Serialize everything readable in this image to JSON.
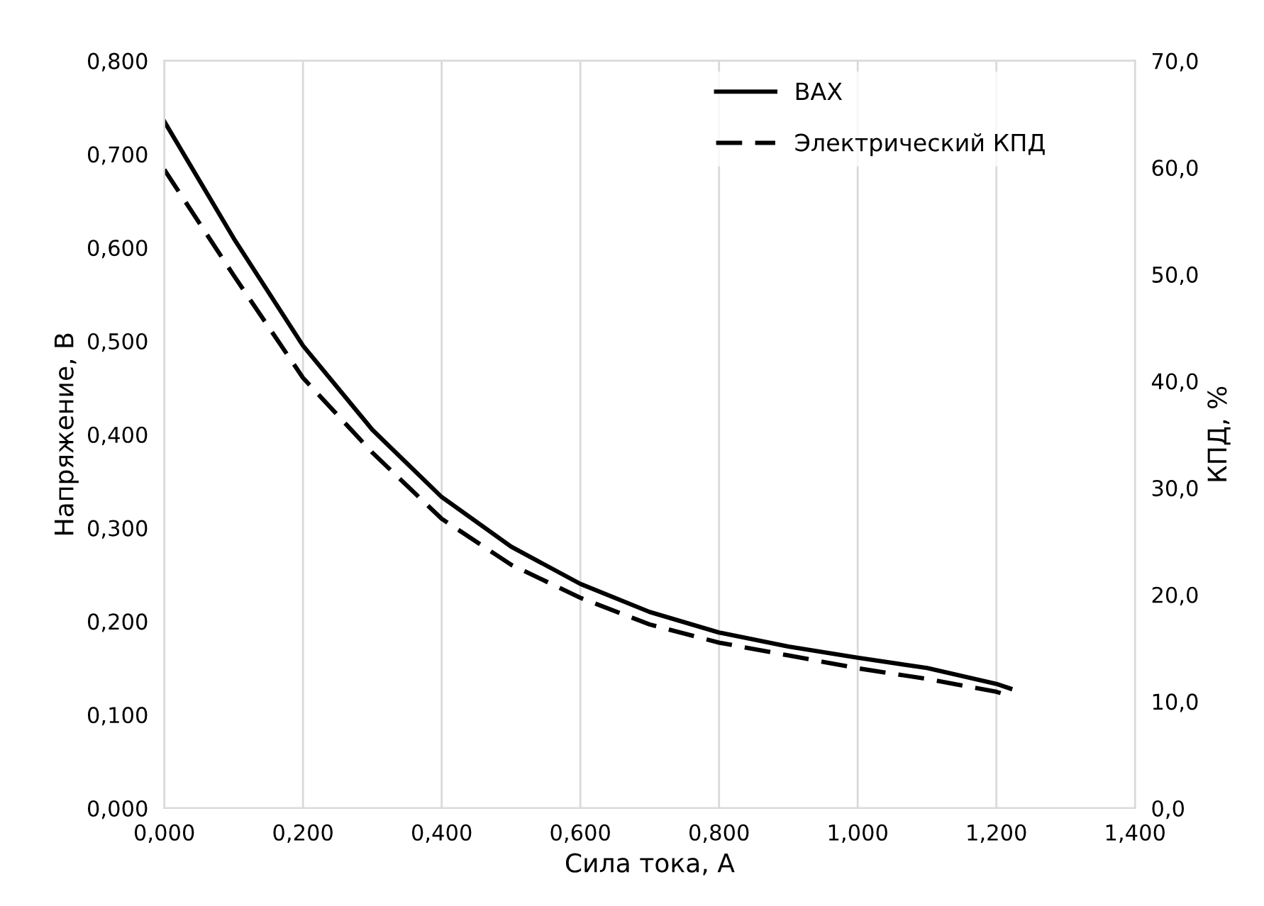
{
  "chart_data": {
    "type": "line",
    "xlabel": "Сила тока, А",
    "ylabel": "Напряжение, В",
    "y2label": "КПД, %",
    "xlim": [
      0,
      1.4
    ],
    "ylim": [
      0,
      0.8
    ],
    "y2lim": [
      0,
      70
    ],
    "xticks": [
      {
        "value": 0,
        "label": "0,000"
      },
      {
        "value": 0.2,
        "label": "0,200"
      },
      {
        "value": 0.4,
        "label": "0,400"
      },
      {
        "value": 0.6,
        "label": "0,600"
      },
      {
        "value": 0.8,
        "label": "0,800"
      },
      {
        "value": 1.0,
        "label": "1,000"
      },
      {
        "value": 1.2,
        "label": "1,200"
      },
      {
        "value": 1.4,
        "label": "1,400"
      }
    ],
    "yticks": [
      {
        "value": 0,
        "label": "0,000"
      },
      {
        "value": 0.1,
        "label": "0,100"
      },
      {
        "value": 0.2,
        "label": "0,200"
      },
      {
        "value": 0.3,
        "label": "0,300"
      },
      {
        "value": 0.4,
        "label": "0,400"
      },
      {
        "value": 0.5,
        "label": "0,500"
      },
      {
        "value": 0.6,
        "label": "0,600"
      },
      {
        "value": 0.7,
        "label": "0,700"
      },
      {
        "value": 0.8,
        "label": "0,800"
      }
    ],
    "y2ticks": [
      {
        "value": 0,
        "label": "0,0"
      },
      {
        "value": 10,
        "label": "10,0"
      },
      {
        "value": 20,
        "label": "20,0"
      },
      {
        "value": 30,
        "label": "30,0"
      },
      {
        "value": 40,
        "label": "40,0"
      },
      {
        "value": 50,
        "label": "50,0"
      },
      {
        "value": 60,
        "label": "60,0"
      },
      {
        "value": 70,
        "label": "70,0"
      }
    ],
    "grid": "x",
    "legend": "top right",
    "series": [
      {
        "name": "ВАХ",
        "color": "#000000",
        "line_style": "solid",
        "x": [
          0,
          0.1,
          0.2,
          0.3,
          0.4,
          0.5,
          0.6,
          0.7,
          0.8,
          0.9,
          1.0,
          1.1,
          1.2,
          1.22
        ],
        "values": [
          0.735,
          0.61,
          0.495,
          0.405,
          0.333,
          0.28,
          0.24,
          0.21,
          0.188,
          0.173,
          0.161,
          0.15,
          0.133,
          0.128
        ]
      },
      {
        "name": "Электрический КПД",
        "color": "#000000",
        "line_style": "dashed",
        "axis": "y2",
        "x": [
          0,
          0.1,
          0.2,
          0.3,
          0.4,
          0.5,
          0.6,
          0.7,
          0.8,
          0.9,
          1.0,
          1.1,
          1.2,
          1.22
        ],
        "values": [
          59.8,
          49.9,
          40.3,
          33.3,
          27.1,
          22.8,
          19.7,
          17.2,
          15.5,
          14.3,
          13.1,
          12.1,
          10.9,
          10.5
        ]
      }
    ]
  }
}
